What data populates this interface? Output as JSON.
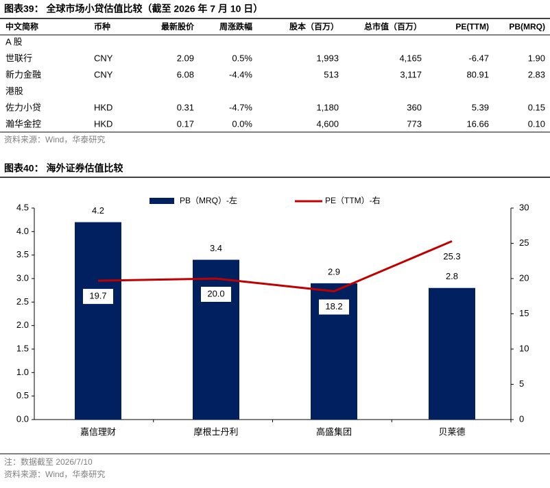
{
  "table_title": "图表39：  全球市场小贷估值比较（截至 2026 年 7 月 10 日）",
  "table": {
    "columns": [
      "中文简称",
      "币种",
      "最新股价",
      "周涨跌幅",
      "股本（百万）",
      "总市值（百万）",
      "PE(TTM)",
      "PB(MRQ)"
    ],
    "groups": [
      {
        "label": "A 股",
        "rows": [
          [
            "世联行",
            "CNY",
            "2.09",
            "0.5%",
            "1,993",
            "4,165",
            "-6.47",
            "1.90"
          ],
          [
            "新力金融",
            "CNY",
            "6.08",
            "-4.4%",
            "513",
            "3,117",
            "80.91",
            "2.83"
          ]
        ]
      },
      {
        "label": "港股",
        "rows": [
          [
            "佐力小贷",
            "HKD",
            "0.31",
            "-4.7%",
            "1,180",
            "360",
            "5.39",
            "0.15"
          ],
          [
            "瀚华金控",
            "HKD",
            "0.17",
            "0.0%",
            "4,600",
            "773",
            "16.66",
            "0.10"
          ]
        ]
      }
    ]
  },
  "table_source": "资料来源：Wind，华泰研究",
  "chart_title": "图表40：  海外证券估值比较",
  "chart_data": {
    "type": "bar",
    "categories": [
      "嘉信理财",
      "摩根士丹利",
      "高盛集团",
      "贝莱德"
    ],
    "series": [
      {
        "name": "PB（MRQ）-左",
        "type": "bar",
        "color": "#002060",
        "values": [
          4.2,
          3.4,
          2.9,
          2.8
        ]
      },
      {
        "name": "PE（TTM）-右",
        "type": "line",
        "axis": "y2",
        "color": "#c00000",
        "values": [
          19.7,
          20.0,
          18.2,
          25.3
        ],
        "value_labels": [
          "19.7",
          "20.0",
          "18.2",
          "25.3"
        ]
      }
    ],
    "ylim": [
      0,
      4.5
    ],
    "yticks": [
      {
        "value": 0,
        "label": "0.0"
      },
      0.5,
      {
        "value": 1,
        "label": "1.0"
      },
      1.5,
      {
        "value": 2,
        "label": "2.0"
      },
      2.5,
      {
        "value": 3,
        "label": "3.0"
      },
      3.5,
      {
        "value": 4,
        "label": "4.0"
      },
      4.5
    ],
    "y2lim": [
      0,
      30
    ],
    "y2ticks": [
      0,
      5,
      10,
      15,
      20,
      25,
      30
    ],
    "legend": "top"
  },
  "notes": [
    "注：数据截至 2026/7/10",
    "资料来源：Wind，华泰研究"
  ]
}
